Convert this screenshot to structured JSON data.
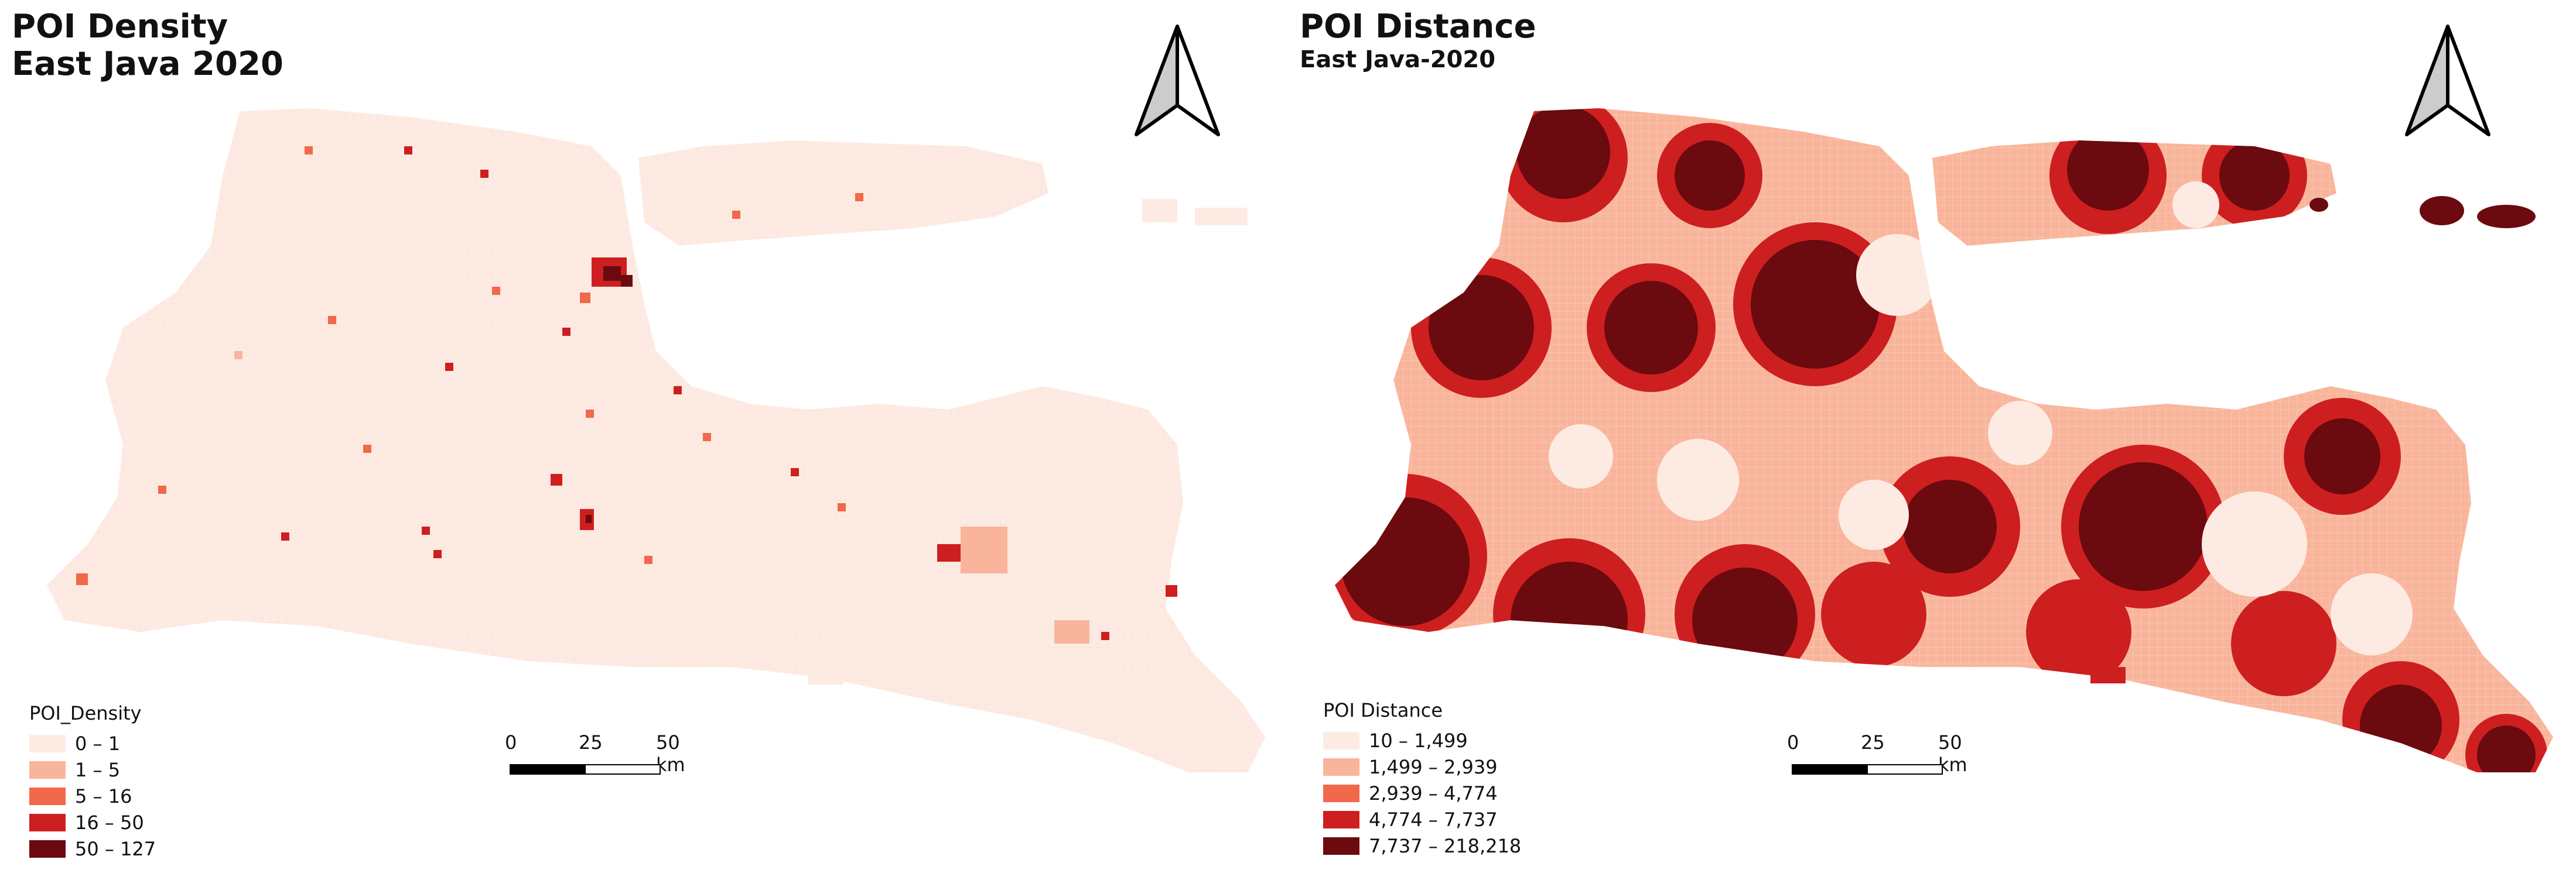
{
  "colors": {
    "c1": "#fdebe3",
    "c2": "#f9b59c",
    "c3": "#f1684a",
    "c4": "#cd1f1f",
    "c5": "#6b0a0f"
  },
  "panels": [
    {
      "title_line1": "POI Density",
      "title_line2": "East Java 2020",
      "legend": {
        "title": "POI_Density",
        "items": [
          {
            "label": "0 – 1",
            "color": "#fdebe3"
          },
          {
            "label": "1 – 5",
            "color": "#f9b59c"
          },
          {
            "label": "5 – 16",
            "color": "#f1684a"
          },
          {
            "label": "16 – 50",
            "color": "#cd1f1f"
          },
          {
            "label": "50 – 127",
            "color": "#6b0a0f"
          }
        ]
      },
      "scalebar": {
        "t0": "0",
        "t1": "25",
        "t2": "50 km"
      },
      "north_icon": "north-arrow-icon"
    },
    {
      "title_line1": "POI Distance",
      "title_line2": "East Java-2020",
      "legend": {
        "title": "POI Distance",
        "items": [
          {
            "label": "10 – 1,499",
            "color": "#fdebe3"
          },
          {
            "label": "1,499 – 2,939",
            "color": "#f9b59c"
          },
          {
            "label": "2,939 – 4,774",
            "color": "#f1684a"
          },
          {
            "label": "4,774 – 7,737",
            "color": "#cd1f1f"
          },
          {
            "label": "7,737 – 218,218",
            "color": "#6b0a0f"
          }
        ]
      },
      "scalebar": {
        "t0": "0",
        "t1": "25",
        "t2": "50 km"
      },
      "north_icon": "north-arrow-icon"
    }
  ]
}
